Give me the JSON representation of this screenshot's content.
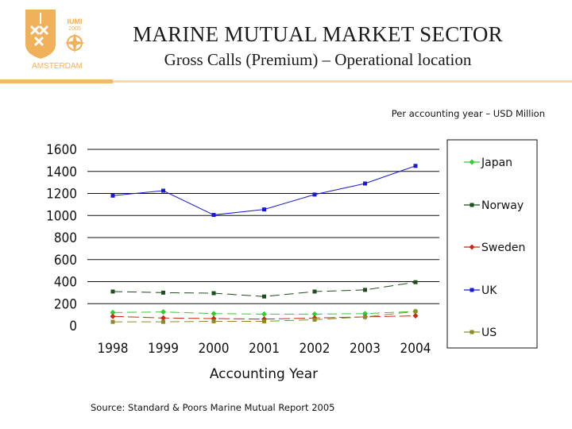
{
  "header": {
    "title": "MARINE MUTUAL MARKET SECTOR",
    "subtitle": "Gross Calls (Premium) – Operational location"
  },
  "logo": {
    "top_text": "IUMI",
    "year_text": "2005",
    "city_text": "AMSTERDAM"
  },
  "note": "Per accounting year – USD Million",
  "source": "Source: Standard & Poors Marine Mutual Report 2005",
  "chart_data": {
    "type": "line",
    "title": "",
    "xlabel": "Accounting Year",
    "ylabel": "",
    "categories": [
      "1998",
      "1999",
      "2000",
      "2001",
      "2002",
      "2003",
      "2004"
    ],
    "ylim": [
      0,
      1600
    ],
    "yticks": [
      "0",
      "200",
      "400",
      "600",
      "800",
      "1000",
      "1200",
      "1400",
      "1600"
    ],
    "legend_position": "right",
    "series": [
      {
        "name": "Japan",
        "color": "#33cc33",
        "marker": "diamond",
        "values": [
          120,
          125,
          110,
          105,
          105,
          110,
          130
        ]
      },
      {
        "name": "Norway",
        "color": "#1e4d1e",
        "marker": "square",
        "values": [
          310,
          300,
          295,
          265,
          310,
          325,
          395
        ]
      },
      {
        "name": "Sweden",
        "color": "#cc2a10",
        "marker": "diamond",
        "values": [
          85,
          70,
          65,
          60,
          70,
          80,
          90
        ]
      },
      {
        "name": "UK",
        "color": "#1a1ad6",
        "marker": "square",
        "values": [
          1180,
          1225,
          1005,
          1055,
          1190,
          1290,
          1450
        ]
      },
      {
        "name": "US",
        "color": "#8c8c26",
        "marker": "square",
        "values": [
          35,
          35,
          40,
          40,
          55,
          80,
          130
        ]
      }
    ]
  }
}
